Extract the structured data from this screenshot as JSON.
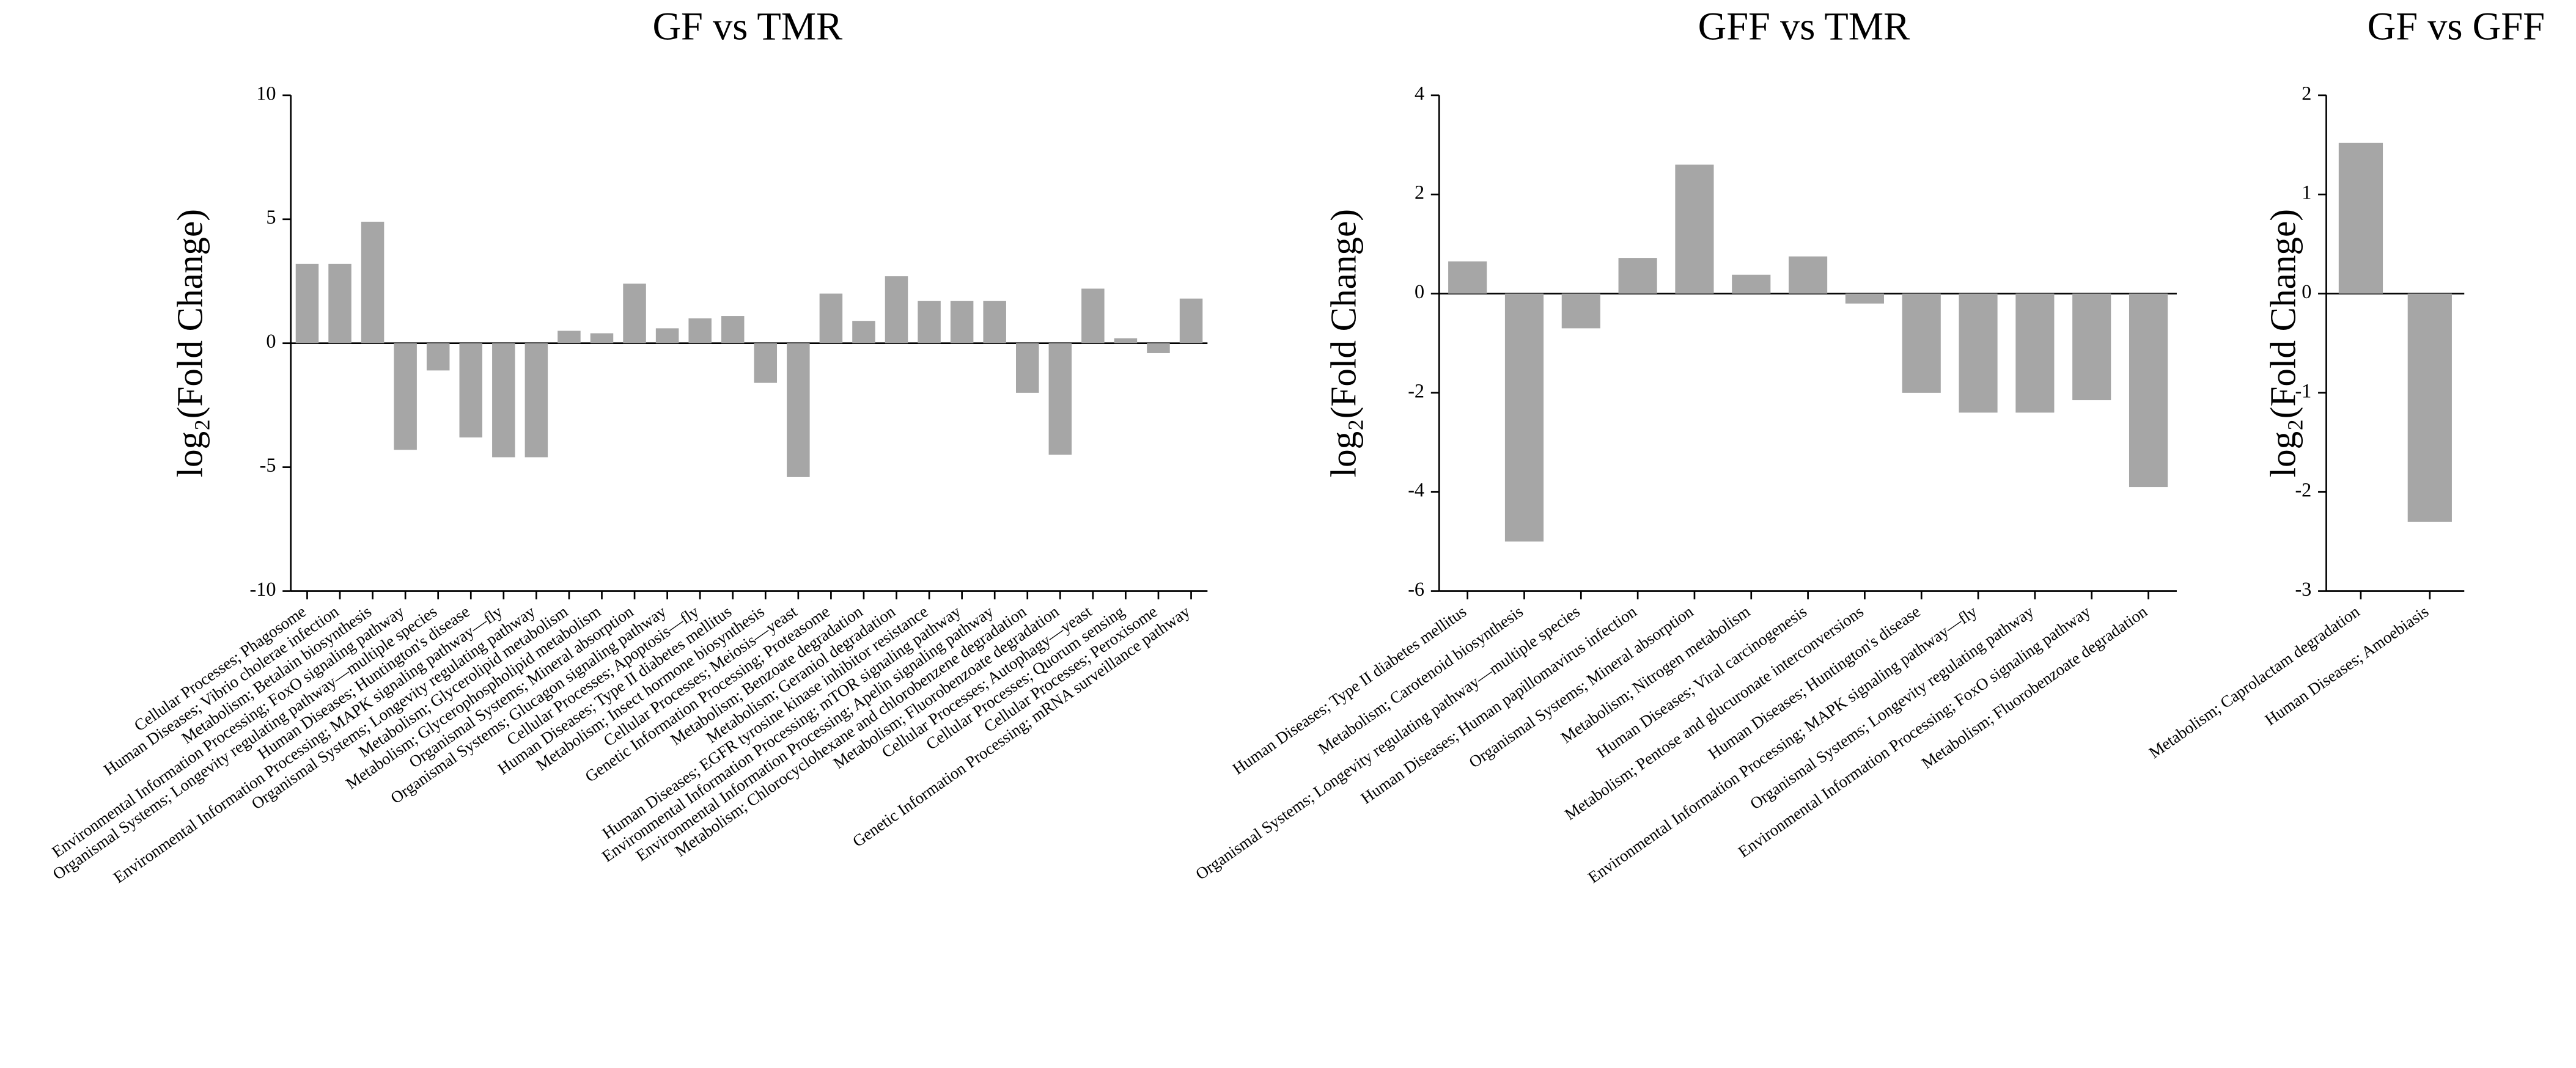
{
  "chart_data": [
    {
      "type": "bar",
      "title": "GF vs TMR",
      "y_label": "log₂(Fold Change)",
      "color": "#a6a6a6",
      "categories": [
        "Cellular Processes; Phagosome",
        "Human Diseases; Vibrio cholerae infection",
        "Metabolism; Betalain biosynthesis",
        "Environmental Information Processing; FoxO signaling pathway",
        "Organismal Systems; Longevity regulating pathway—multiple species",
        "Human Diseases; Huntington's disease",
        "Environmental Information Processing; MAPK signaling pathway—fly",
        "Organismal Systems; Longevity regulating pathway",
        "Metabolism; Glycerolipid metabolism",
        "Metabolism; Glycerophospholipid metabolism",
        "Organismal Systems; Mineral absorption",
        "Organismal Systems; Glucagon signaling pathway",
        "Cellular Processes; Apoptosis—fly",
        "Human Diseases; Type II diabetes mellitus",
        "Metabolism; Insect hormone biosynthesis",
        "Cellular Processes; Meiosis—yeast",
        "Genetic Information Processing; Proteasome",
        "Metabolism; Benzoate degradation",
        "Metabolism; Geraniol degradation",
        "Human Diseases; EGFR tyrosine kinase inhibitor resistance",
        "Environmental Information Processing; mTOR signaling pathway",
        "Environmental Information Processing; Apelin signaling pathway",
        "Metabolism; Chlorocyclohexane and chlorobenzene degradation",
        "Metabolism; Fluorobenzoate degradation",
        "Cellular Processes; Autophagy—yeast",
        "Cellular Processes; Quorum sensing",
        "Cellular Processes; Peroxisome",
        "Genetic Information Processing; mRNA surveillance pathway"
      ],
      "values": [
        3.2,
        3.2,
        4.9,
        -4.3,
        -1.1,
        -3.8,
        -4.6,
        -4.6,
        0.5,
        0.4,
        2.4,
        0.6,
        1.0,
        1.1,
        -1.6,
        -5.4,
        2.0,
        0.9,
        2.7,
        1.7,
        1.7,
        1.7,
        -2.0,
        -4.5,
        2.2,
        0.2,
        -0.4,
        1.8
      ],
      "ylim": [
        -10,
        10
      ],
      "yticks": [
        -10,
        -5,
        0,
        5,
        10
      ]
    },
    {
      "type": "bar",
      "title": "GFF vs TMR",
      "y_label": "log₂(Fold Change)",
      "color": "#a6a6a6",
      "categories": [
        "Human Diseases; Type II diabetes mellitus",
        "Metabolism; Carotenoid biosynthesis",
        "Organismal Systems; Longevity regulating pathway—multiple species",
        "Human Diseases; Human papillomavirus infection",
        "Organismal Systems; Mineral absorption",
        "Metabolism; Nitrogen metabolism",
        "Human Diseases; Viral carcinogenesis",
        "Metabolism; Pentose and glucuronate interconversions",
        "Human Diseases; Huntington's disease",
        "Environmental Information Processing; MAPK signaling pathway—fly",
        "Organismal Systems; Longevity regulating pathway",
        "Environmental Information Processing; FoxO signaling pathway",
        "Metabolism; Fluorobenzoate degradation"
      ],
      "values": [
        0.65,
        -5.0,
        -0.7,
        0.72,
        2.6,
        0.38,
        0.75,
        -0.2,
        -2.0,
        -2.4,
        -2.4,
        -2.15,
        -3.9
      ],
      "ylim": [
        -6,
        4
      ],
      "yticks": [
        -6,
        -4,
        -2,
        0,
        2,
        4
      ]
    },
    {
      "type": "bar",
      "title": "GF vs GFF",
      "y_label": "log₂(Fold Change)",
      "color": "#a6a6a6",
      "categories": [
        "Metabolism; Caprolactam degradation",
        "Human Diseases; Amoebiasis"
      ],
      "values": [
        1.52,
        -2.3
      ],
      "ylim": [
        -3,
        2
      ],
      "yticks": [
        -3,
        -2,
        -1,
        0,
        1,
        2
      ]
    }
  ]
}
